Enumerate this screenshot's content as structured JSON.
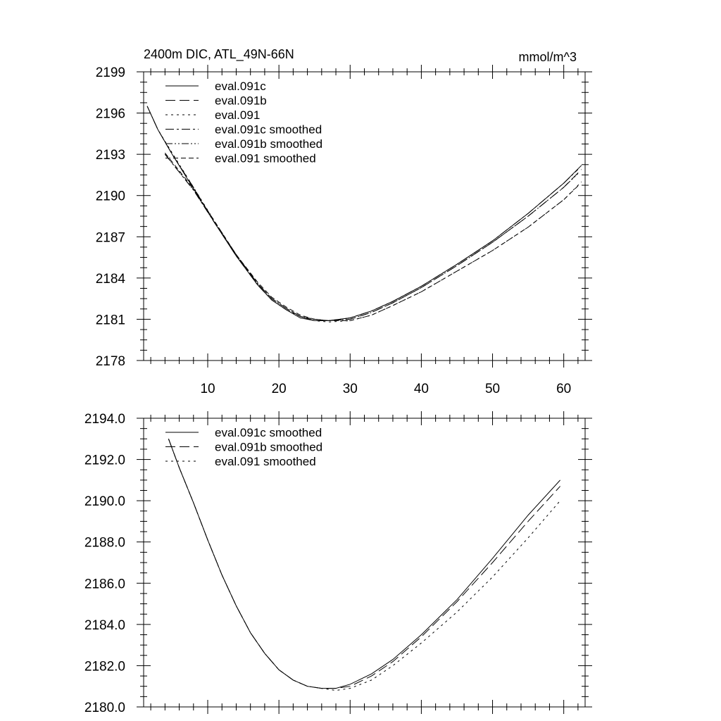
{
  "chart_data": [
    {
      "type": "line",
      "title": "2400m DIC, ATL_49N-66N",
      "units": "mmol/m^3",
      "xlabel": "",
      "ylabel": "",
      "xlim": [
        1,
        63
      ],
      "ylim": [
        2178,
        2199
      ],
      "x_ticks": [
        10,
        20,
        30,
        40,
        50,
        60
      ],
      "x_tick_labels": [
        "10",
        "20",
        "30",
        "40",
        "50",
        "60"
      ],
      "y_ticks": [
        2178,
        2181,
        2184,
        2187,
        2190,
        2193,
        2196,
        2199
      ],
      "y_tick_labels": [
        "2178",
        "2181",
        "2184",
        "2187",
        "2190",
        "2193",
        "2196",
        "2199"
      ],
      "grid": false,
      "legend_position": "top-left",
      "series": [
        {
          "name": "eval.091c",
          "style": "solid",
          "x": [
            1.5,
            3,
            5,
            8,
            11,
            14,
            17,
            19,
            21,
            23,
            25,
            27,
            30,
            33,
            36,
            40,
            45,
            50,
            55,
            60,
            62.5
          ],
          "y": [
            2196.5,
            2194.8,
            2193.0,
            2190.5,
            2188.0,
            2185.6,
            2183.5,
            2182.4,
            2181.7,
            2181.1,
            2180.9,
            2180.9,
            2181.1,
            2181.6,
            2182.3,
            2183.4,
            2185.0,
            2186.7,
            2188.7,
            2190.9,
            2192.2
          ]
        },
        {
          "name": "eval.091b",
          "style": "long-dash",
          "x": [
            1.5,
            3,
            5,
            8,
            11,
            14,
            17,
            19,
            21,
            23,
            25,
            27,
            30,
            33,
            36,
            40,
            45,
            50,
            55,
            60,
            62.5
          ],
          "y": [
            2196.5,
            2194.8,
            2193.0,
            2190.6,
            2188.0,
            2185.7,
            2183.6,
            2182.5,
            2181.8,
            2181.2,
            2180.9,
            2180.9,
            2181.0,
            2181.5,
            2182.2,
            2183.3,
            2184.9,
            2186.6,
            2188.5,
            2190.6,
            2191.9
          ]
        },
        {
          "name": "eval.091",
          "style": "dotted",
          "x": [
            1.5,
            3,
            5,
            8,
            11,
            14,
            17,
            19,
            21,
            23,
            25,
            27,
            30,
            33,
            36,
            40,
            45,
            50,
            55,
            60,
            62.5
          ],
          "y": [
            2196.5,
            2194.8,
            2193.1,
            2190.6,
            2188.1,
            2185.7,
            2183.6,
            2182.5,
            2181.8,
            2181.2,
            2180.9,
            2180.8,
            2180.9,
            2181.3,
            2182.0,
            2183.0,
            2184.5,
            2186.0,
            2187.7,
            2189.7,
            2191.0
          ]
        },
        {
          "name": "eval.091c smoothed",
          "style": "dash-dot",
          "x": [
            4,
            6,
            8,
            11,
            14,
            17,
            19,
            21,
            23,
            25,
            27,
            30,
            33,
            36,
            40,
            45,
            50,
            55,
            60,
            62
          ],
          "y": [
            2193.0,
            2191.7,
            2190.4,
            2188.0,
            2185.6,
            2183.5,
            2182.4,
            2181.7,
            2181.2,
            2181.0,
            2180.9,
            2181.1,
            2181.6,
            2182.3,
            2183.4,
            2185.0,
            2186.7,
            2188.7,
            2190.9,
            2191.9
          ]
        },
        {
          "name": "eval.091b smoothed",
          "style": "dash-dot-dot",
          "x": [
            4,
            6,
            8,
            11,
            14,
            17,
            19,
            21,
            23,
            25,
            27,
            30,
            33,
            36,
            40,
            45,
            50,
            55,
            60,
            62
          ],
          "y": [
            2193.0,
            2191.7,
            2190.4,
            2188.0,
            2185.7,
            2183.6,
            2182.5,
            2181.8,
            2181.2,
            2181.0,
            2180.9,
            2181.0,
            2181.5,
            2182.2,
            2183.3,
            2184.9,
            2186.6,
            2188.5,
            2190.6,
            2191.6
          ]
        },
        {
          "name": "eval.091 smoothed",
          "style": "short-dash",
          "x": [
            4,
            6,
            8,
            11,
            14,
            17,
            19,
            21,
            23,
            25,
            27,
            30,
            33,
            36,
            40,
            45,
            50,
            55,
            60,
            62
          ],
          "y": [
            2193.1,
            2191.8,
            2190.5,
            2188.1,
            2185.7,
            2183.7,
            2182.6,
            2181.9,
            2181.3,
            2181.0,
            2180.9,
            2180.9,
            2181.3,
            2182.0,
            2183.0,
            2184.5,
            2186.0,
            2187.7,
            2189.7,
            2190.7
          ]
        }
      ]
    },
    {
      "type": "line",
      "title": "",
      "xlabel": "",
      "ylabel": "",
      "xlim": [
        1,
        63
      ],
      "ylim": [
        2180.0,
        2194.0
      ],
      "x_ticks": [
        10,
        20,
        30,
        40,
        50,
        60
      ],
      "x_tick_labels": [],
      "y_ticks": [
        2180.0,
        2182.0,
        2184.0,
        2186.0,
        2188.0,
        2190.0,
        2192.0,
        2194.0
      ],
      "y_tick_labels": [
        "2180.0",
        "2182.0",
        "2184.0",
        "2186.0",
        "2188.0",
        "2190.0",
        "2192.0",
        "2194.0"
      ],
      "grid": false,
      "legend_position": "top-left",
      "series": [
        {
          "name": "eval.091c smoothed",
          "style": "solid",
          "x": [
            4.5,
            6,
            8,
            10,
            12,
            14,
            16,
            18,
            20,
            22,
            24,
            26,
            28,
            30,
            33,
            36,
            40,
            45,
            50,
            55,
            59.5
          ],
          "y": [
            2193.0,
            2191.6,
            2189.9,
            2188.1,
            2186.4,
            2184.9,
            2183.6,
            2182.6,
            2181.8,
            2181.3,
            2181.0,
            2180.9,
            2180.9,
            2181.1,
            2181.6,
            2182.3,
            2183.5,
            2185.2,
            2187.2,
            2189.3,
            2191.0
          ]
        },
        {
          "name": "eval.091b smoothed",
          "style": "long-dash",
          "x": [
            4.5,
            6,
            8,
            10,
            12,
            14,
            16,
            18,
            20,
            22,
            24,
            26,
            28,
            30,
            33,
            36,
            40,
            45,
            50,
            55,
            59.5
          ],
          "y": [
            2193.0,
            2191.6,
            2189.9,
            2188.1,
            2186.4,
            2184.9,
            2183.6,
            2182.6,
            2181.8,
            2181.3,
            2181.0,
            2180.9,
            2180.9,
            2181.0,
            2181.5,
            2182.2,
            2183.4,
            2185.1,
            2187.0,
            2189.0,
            2190.7
          ]
        },
        {
          "name": "eval.091 smoothed",
          "style": "dotted",
          "x": [
            4.5,
            6,
            8,
            10,
            12,
            14,
            16,
            18,
            20,
            22,
            24,
            26,
            28,
            30,
            33,
            36,
            40,
            45,
            50,
            55,
            59.5
          ],
          "y": [
            2193.0,
            2191.6,
            2189.9,
            2188.1,
            2186.4,
            2184.9,
            2183.6,
            2182.6,
            2181.8,
            2181.3,
            2181.0,
            2180.9,
            2180.8,
            2180.9,
            2181.3,
            2182.0,
            2183.1,
            2184.6,
            2186.3,
            2188.2,
            2190.0
          ]
        }
      ]
    }
  ]
}
